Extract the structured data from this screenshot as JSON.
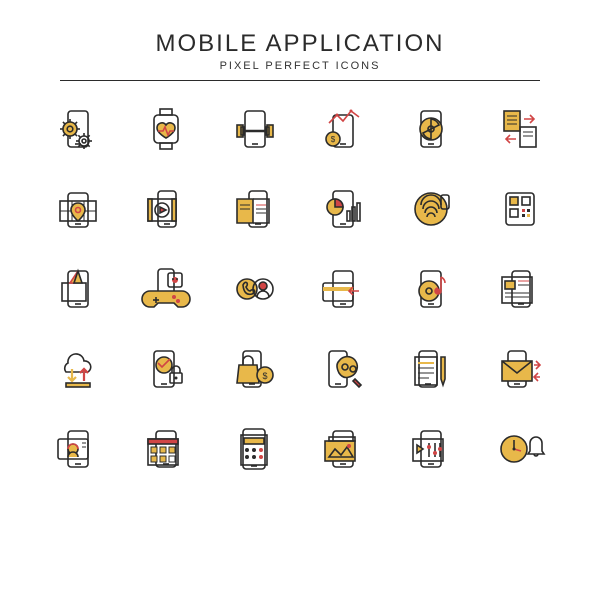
{
  "header": {
    "title": "MOBILE APPLICATION",
    "subtitle": "PIXEL PERFECT ICONS"
  },
  "style": {
    "stroke_primary": "#2b2b2b",
    "accent_yellow": "#e8b84a",
    "accent_red": "#d14545",
    "stroke_width": 1.6,
    "background": "#ffffff"
  },
  "icons": [
    {
      "name": "phone-settings-icon",
      "row": 0,
      "col": 0
    },
    {
      "name": "watch-heart-icon",
      "row": 0,
      "col": 1
    },
    {
      "name": "phone-barbell-icon",
      "row": 0,
      "col": 2
    },
    {
      "name": "phone-finance-icon",
      "row": 0,
      "col": 3
    },
    {
      "name": "phone-camera-icon",
      "row": 0,
      "col": 4
    },
    {
      "name": "file-transfer-icon",
      "row": 0,
      "col": 5
    },
    {
      "name": "phone-map-icon",
      "row": 1,
      "col": 0
    },
    {
      "name": "phone-video-icon",
      "row": 1,
      "col": 1
    },
    {
      "name": "phone-book-icon",
      "row": 1,
      "col": 2
    },
    {
      "name": "phone-chart-icon",
      "row": 1,
      "col": 3
    },
    {
      "name": "fingerprint-icon",
      "row": 1,
      "col": 4
    },
    {
      "name": "qr-code-icon",
      "row": 1,
      "col": 5
    },
    {
      "name": "phone-drill-icon",
      "row": 2,
      "col": 0
    },
    {
      "name": "gamepad-icon",
      "row": 2,
      "col": 1
    },
    {
      "name": "contact-call-icon",
      "row": 2,
      "col": 2
    },
    {
      "name": "payment-card-icon",
      "row": 2,
      "col": 3
    },
    {
      "name": "music-note-icon",
      "row": 2,
      "col": 4
    },
    {
      "name": "news-feed-icon",
      "row": 2,
      "col": 5
    },
    {
      "name": "cloud-sync-icon",
      "row": 3,
      "col": 0
    },
    {
      "name": "phone-lock-icon",
      "row": 3,
      "col": 1
    },
    {
      "name": "shopping-bag-icon",
      "row": 3,
      "col": 2
    },
    {
      "name": "design-pen-icon",
      "row": 3,
      "col": 3
    },
    {
      "name": "document-edit-icon",
      "row": 3,
      "col": 4
    },
    {
      "name": "mail-send-icon",
      "row": 3,
      "col": 5
    },
    {
      "name": "support-chat-icon",
      "row": 4,
      "col": 0
    },
    {
      "name": "calendar-grid-icon",
      "row": 4,
      "col": 1
    },
    {
      "name": "calculator-icon",
      "row": 4,
      "col": 2
    },
    {
      "name": "photo-gallery-icon",
      "row": 4,
      "col": 3
    },
    {
      "name": "media-controls-icon",
      "row": 4,
      "col": 4
    },
    {
      "name": "clock-bell-icon",
      "row": 4,
      "col": 5
    }
  ]
}
